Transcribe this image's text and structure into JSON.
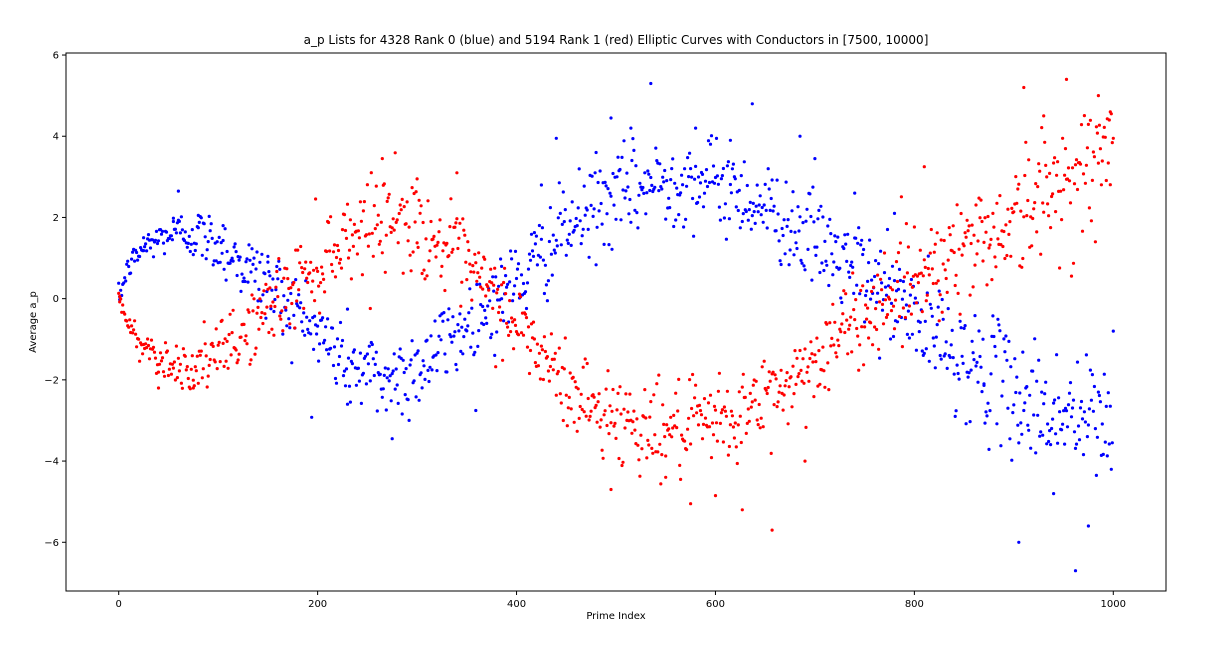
{
  "chart_data": {
    "type": "scatter",
    "title": "a_p Lists for 4328 Rank 0 (blue) and 5194 Rank 1 (red) Elliptic Curves with Conductors in [7500, 10000]",
    "xlabel": "Prime Index",
    "ylabel": "Average a_p",
    "xlim": [
      -53,
      1053
    ],
    "ylim": [
      -7.2,
      6.05
    ],
    "xticks": [
      0,
      200,
      400,
      600,
      800,
      1000
    ],
    "yticks": [
      -6,
      -4,
      -2,
      0,
      2,
      4,
      6
    ],
    "xtick_labels": [
      "0",
      "200",
      "400",
      "600",
      "800",
      "1000"
    ],
    "ytick_labels": [
      "−6",
      "−4",
      "−2",
      "0",
      "2",
      "4",
      "6"
    ],
    "grid": false,
    "series": [
      {
        "color": "#0000ff",
        "noise": 0.55,
        "envelope": [
          [
            0,
            0
          ],
          [
            10,
            0.8
          ],
          [
            25,
            1.25
          ],
          [
            45,
            1.55
          ],
          [
            65,
            1.65
          ],
          [
            80,
            1.55
          ],
          [
            100,
            1.35
          ],
          [
            120,
            0.95
          ],
          [
            140,
            0.55
          ],
          [
            160,
            0.15
          ],
          [
            180,
            -0.35
          ],
          [
            200,
            -0.85
          ],
          [
            220,
            -1.35
          ],
          [
            245,
            -1.8
          ],
          [
            270,
            -2.0
          ],
          [
            290,
            -1.85
          ],
          [
            310,
            -1.5
          ],
          [
            330,
            -1.05
          ],
          [
            350,
            -0.65
          ],
          [
            370,
            -0.2
          ],
          [
            390,
            0.2
          ],
          [
            410,
            0.6
          ],
          [
            430,
            1.2
          ],
          [
            450,
            1.7
          ],
          [
            480,
            2.2
          ],
          [
            510,
            2.6
          ],
          [
            540,
            2.85
          ],
          [
            570,
            2.95
          ],
          [
            600,
            2.85
          ],
          [
            630,
            2.55
          ],
          [
            660,
            2.1
          ],
          [
            690,
            1.6
          ],
          [
            720,
            1.05
          ],
          [
            750,
            0.55
          ],
          [
            770,
            0.2
          ],
          [
            790,
            -0.2
          ],
          [
            810,
            -0.7
          ],
          [
            840,
            -1.3
          ],
          [
            870,
            -1.85
          ],
          [
            900,
            -2.3
          ],
          [
            930,
            -2.7
          ],
          [
            960,
            -2.95
          ],
          [
            990,
            -3.0
          ],
          [
            1000,
            -3.0
          ]
        ],
        "marks": [
          [
            1,
            0.05
          ],
          [
            25,
            1.5
          ],
          [
            55,
            1.9
          ],
          [
            60,
            2.65
          ],
          [
            80,
            2.05
          ],
          [
            105,
            1.8
          ],
          [
            150,
            0.9
          ],
          [
            230,
            -2.6
          ],
          [
            275,
            -3.45
          ],
          [
            385,
            0.0
          ],
          [
            425,
            2.8
          ],
          [
            440,
            3.95
          ],
          [
            480,
            3.6
          ],
          [
            495,
            4.45
          ],
          [
            515,
            4.2
          ],
          [
            535,
            5.3
          ],
          [
            580,
            4.2
          ],
          [
            615,
            3.9
          ],
          [
            637,
            4.8
          ],
          [
            685,
            4.0
          ],
          [
            700,
            3.45
          ],
          [
            740,
            2.6
          ],
          [
            780,
            2.1
          ],
          [
            870,
            -2.1
          ],
          [
            905,
            -6.0
          ],
          [
            940,
            -4.8
          ],
          [
            962,
            -6.7
          ],
          [
            975,
            -5.6
          ],
          [
            1000,
            -0.8
          ]
        ]
      },
      {
        "color": "#ff0000",
        "noise": 0.55,
        "envelope": [
          [
            0,
            0
          ],
          [
            10,
            -0.7
          ],
          [
            25,
            -1.15
          ],
          [
            45,
            -1.5
          ],
          [
            65,
            -1.7
          ],
          [
            80,
            -1.65
          ],
          [
            100,
            -1.4
          ],
          [
            120,
            -1.0
          ],
          [
            140,
            -0.5
          ],
          [
            160,
            -0.05
          ],
          [
            180,
            0.4
          ],
          [
            200,
            0.85
          ],
          [
            220,
            1.35
          ],
          [
            245,
            1.8
          ],
          [
            270,
            2.05
          ],
          [
            290,
            1.9
          ],
          [
            310,
            1.6
          ],
          [
            330,
            1.2
          ],
          [
            350,
            0.75
          ],
          [
            370,
            0.2
          ],
          [
            390,
            -0.3
          ],
          [
            410,
            -0.9
          ],
          [
            430,
            -1.6
          ],
          [
            450,
            -2.2
          ],
          [
            480,
            -2.7
          ],
          [
            510,
            -3.0
          ],
          [
            540,
            -3.2
          ],
          [
            570,
            -3.25
          ],
          [
            600,
            -3.1
          ],
          [
            630,
            -2.8
          ],
          [
            660,
            -2.35
          ],
          [
            690,
            -1.75
          ],
          [
            720,
            -1.05
          ],
          [
            750,
            -0.4
          ],
          [
            770,
            0.05
          ],
          [
            790,
            0.4
          ],
          [
            810,
            0.75
          ],
          [
            840,
            1.1
          ],
          [
            870,
            1.5
          ],
          [
            900,
            2.0
          ],
          [
            930,
            2.5
          ],
          [
            960,
            3.05
          ],
          [
            990,
            3.4
          ],
          [
            1000,
            3.5
          ]
        ],
        "marks": [
          [
            1,
            0.05
          ],
          [
            40,
            -2.2
          ],
          [
            75,
            -2.2
          ],
          [
            265,
            3.45
          ],
          [
            300,
            2.95
          ],
          [
            340,
            3.1
          ],
          [
            495,
            -4.7
          ],
          [
            550,
            -4.4
          ],
          [
            575,
            -5.05
          ],
          [
            600,
            -4.85
          ],
          [
            627,
            -5.2
          ],
          [
            657,
            -5.7
          ],
          [
            690,
            -4.0
          ],
          [
            810,
            3.25
          ],
          [
            910,
            5.2
          ],
          [
            930,
            4.5
          ],
          [
            953,
            5.4
          ],
          [
            985,
            5.0
          ],
          [
            997,
            4.6
          ],
          [
            1000,
            3.95
          ]
        ]
      }
    ],
    "points_per_series": 1000
  }
}
